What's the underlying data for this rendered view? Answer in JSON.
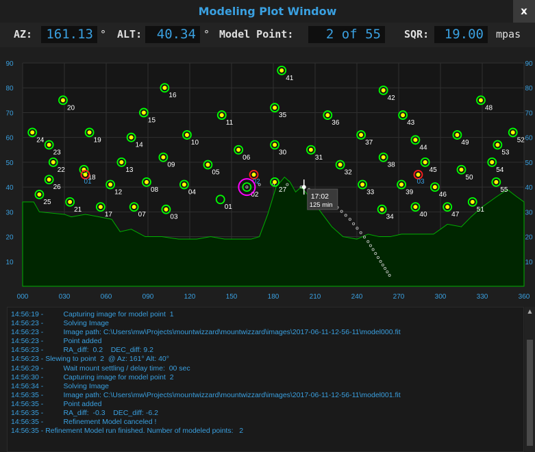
{
  "window": {
    "title": "Modeling Plot Window",
    "close_label": "x"
  },
  "status": {
    "az_label": "AZ:",
    "az_value": "161.13",
    "az_unit": "°",
    "alt_label": "ALT:",
    "alt_value": "40.34",
    "alt_unit": "°",
    "model_point_label": "Model Point:",
    "model_point_value": "2 of 55",
    "sqr_label": "SQR:",
    "sqr_value": "19.00",
    "sqr_unit": "mpas"
  },
  "colors": {
    "accent": "#3aa0e0",
    "point": "#ffff00",
    "point_ring": "#00ff00",
    "point_bad": "#ff2020",
    "target": "#ff00ff",
    "horizon": "#002600",
    "horizon_line": "#00b000"
  },
  "chart_data": {
    "type": "scatter",
    "xlim": [
      0,
      360
    ],
    "ylim": [
      0,
      90
    ],
    "x_ticks": [
      "000",
      "030",
      "060",
      "090",
      "120",
      "150",
      "180",
      "210",
      "240",
      "270",
      "300",
      "330",
      "360"
    ],
    "y_ticks": [
      "10",
      "20",
      "30",
      "40",
      "50",
      "60",
      "70",
      "80",
      "90"
    ],
    "grid": true,
    "points": [
      {
        "label": "01",
        "az": 142,
        "alt": 35,
        "state": "done"
      },
      {
        "label": "02",
        "az": 161,
        "alt": 40,
        "state": "done"
      },
      {
        "label": "03",
        "az": 103,
        "alt": 31
      },
      {
        "label": "04",
        "az": 116,
        "alt": 41
      },
      {
        "label": "05",
        "az": 133,
        "alt": 49
      },
      {
        "label": "06",
        "az": 155,
        "alt": 55
      },
      {
        "label": "07",
        "az": 80,
        "alt": 32
      },
      {
        "label": "08",
        "az": 89,
        "alt": 42
      },
      {
        "label": "09",
        "az": 101,
        "alt": 52
      },
      {
        "label": "10",
        "az": 118,
        "alt": 61
      },
      {
        "label": "11",
        "az": 143,
        "alt": 69
      },
      {
        "label": "12",
        "az": 63,
        "alt": 41
      },
      {
        "label": "13",
        "az": 71,
        "alt": 50
      },
      {
        "label": "14",
        "az": 78,
        "alt": 60
      },
      {
        "label": "15",
        "az": 87,
        "alt": 70
      },
      {
        "label": "16",
        "az": 102,
        "alt": 80
      },
      {
        "label": "17",
        "az": 56,
        "alt": 32
      },
      {
        "label": "18",
        "az": 44,
        "alt": 47
      },
      {
        "label": "19",
        "az": 48,
        "alt": 62
      },
      {
        "label": "20",
        "az": 29,
        "alt": 75
      },
      {
        "label": "21",
        "az": 34,
        "alt": 34
      },
      {
        "label": "22",
        "az": 22,
        "alt": 50
      },
      {
        "label": "23",
        "az": 19,
        "alt": 57
      },
      {
        "label": "24",
        "az": 7,
        "alt": 62
      },
      {
        "label": "25",
        "az": 12,
        "alt": 37
      },
      {
        "label": "26",
        "az": 19,
        "alt": 43
      },
      {
        "label": "27",
        "az": 181,
        "alt": 42
      },
      {
        "label": "30",
        "az": 181,
        "alt": 57
      },
      {
        "label": "31",
        "az": 207,
        "alt": 55
      },
      {
        "label": "32",
        "az": 228,
        "alt": 49
      },
      {
        "label": "33",
        "az": 244,
        "alt": 41
      },
      {
        "label": "34",
        "az": 258,
        "alt": 31
      },
      {
        "label": "35",
        "az": 181,
        "alt": 72
      },
      {
        "label": "36",
        "az": 219,
        "alt": 69
      },
      {
        "label": "37",
        "az": 243,
        "alt": 61
      },
      {
        "label": "38",
        "az": 259,
        "alt": 52
      },
      {
        "label": "39",
        "az": 272,
        "alt": 41
      },
      {
        "label": "40",
        "az": 282,
        "alt": 32
      },
      {
        "label": "41",
        "az": 186,
        "alt": 87
      },
      {
        "label": "42",
        "az": 259,
        "alt": 79
      },
      {
        "label": "43",
        "az": 273,
        "alt": 69
      },
      {
        "label": "44",
        "az": 282,
        "alt": 59
      },
      {
        "label": "45",
        "az": 289,
        "alt": 50
      },
      {
        "label": "46",
        "az": 296,
        "alt": 40
      },
      {
        "label": "47",
        "az": 305,
        "alt": 32
      },
      {
        "label": "48",
        "az": 329,
        "alt": 75
      },
      {
        "label": "49",
        "az": 312,
        "alt": 61
      },
      {
        "label": "50",
        "az": 315,
        "alt": 47
      },
      {
        "label": "51",
        "az": 323,
        "alt": 34
      },
      {
        "label": "52",
        "az": 352,
        "alt": 62
      },
      {
        "label": "53",
        "az": 341,
        "alt": 57
      },
      {
        "label": "54",
        "az": 337,
        "alt": 50
      },
      {
        "label": "55",
        "az": 340,
        "alt": 42
      }
    ],
    "bad_points": [
      {
        "label": "01",
        "az": 45,
        "alt": 45
      },
      {
        "label": "02",
        "az": 166,
        "alt": 45
      },
      {
        "label": "03",
        "az": 284,
        "alt": 45
      }
    ],
    "target": {
      "az": 161,
      "alt": 40
    },
    "mount_track": [
      [
        161,
        40
      ],
      [
        170,
        41
      ],
      [
        180,
        41
      ],
      [
        190,
        41
      ],
      [
        200,
        40
      ]
    ],
    "meridian_marker": {
      "az": 202,
      "alt": 40,
      "time": "17:02",
      "duration": "125 min"
    },
    "dome_path": [
      [
        202,
        40
      ],
      [
        220,
        35
      ],
      [
        235,
        27
      ],
      [
        248,
        18
      ],
      [
        257,
        10
      ],
      [
        265,
        3
      ]
    ],
    "horizon": [
      [
        0,
        34
      ],
      [
        8,
        34
      ],
      [
        12,
        30
      ],
      [
        30,
        29
      ],
      [
        35,
        28
      ],
      [
        45,
        29
      ],
      [
        55,
        28
      ],
      [
        64,
        27
      ],
      [
        70,
        22
      ],
      [
        78,
        23
      ],
      [
        88,
        20
      ],
      [
        100,
        20
      ],
      [
        112,
        19
      ],
      [
        125,
        19
      ],
      [
        135,
        20
      ],
      [
        145,
        19
      ],
      [
        155,
        19
      ],
      [
        164,
        19
      ],
      [
        170,
        20
      ],
      [
        176,
        29
      ],
      [
        182,
        40
      ],
      [
        188,
        44
      ],
      [
        192,
        42
      ],
      [
        196,
        38
      ],
      [
        200,
        40
      ],
      [
        206,
        36
      ],
      [
        214,
        30
      ],
      [
        222,
        24
      ],
      [
        230,
        20
      ],
      [
        240,
        19
      ],
      [
        248,
        21
      ],
      [
        256,
        20
      ],
      [
        264,
        20
      ],
      [
        272,
        21
      ],
      [
        285,
        21
      ],
      [
        295,
        21
      ],
      [
        305,
        25
      ],
      [
        315,
        24
      ],
      [
        322,
        28
      ],
      [
        330,
        32
      ],
      [
        340,
        36
      ],
      [
        348,
        39
      ],
      [
        355,
        36
      ],
      [
        360,
        34
      ]
    ]
  },
  "log": [
    "14:56:19 -          Capturing image for model point  1",
    "14:56:23 -          Solving Image",
    "14:56:23 -          Image path: C:\\Users\\mw\\Projects\\mountwizzard\\mountwizzard\\images\\2017-06-11-12-56-11\\model000.fit",
    "14:56:23 -          Point added",
    "14:56:23 -          RA_diff:  0.2    DEC_diff: 9.2",
    "14:56:23 - Slewing to point  2  @ Az: 161° Alt: 40°",
    "14:56:29 -          Wait mount settling / delay time:  00 sec",
    "14:56:30 -          Capturing image for model point  2",
    "14:56:34 -          Solving Image",
    "14:56:35 -          Image path: C:\\Users\\mw\\Projects\\mountwizzard\\mountwizzard\\images\\2017-06-11-12-56-11\\model001.fit",
    "14:56:35 -          Point added",
    "14:56:35 -          RA_diff:  -0.3    DEC_diff: -6.2",
    "14:56:35 -          Refinement Model canceled !",
    "14:56:35 - Refinement Model run finished. Number of modeled points:   2"
  ]
}
